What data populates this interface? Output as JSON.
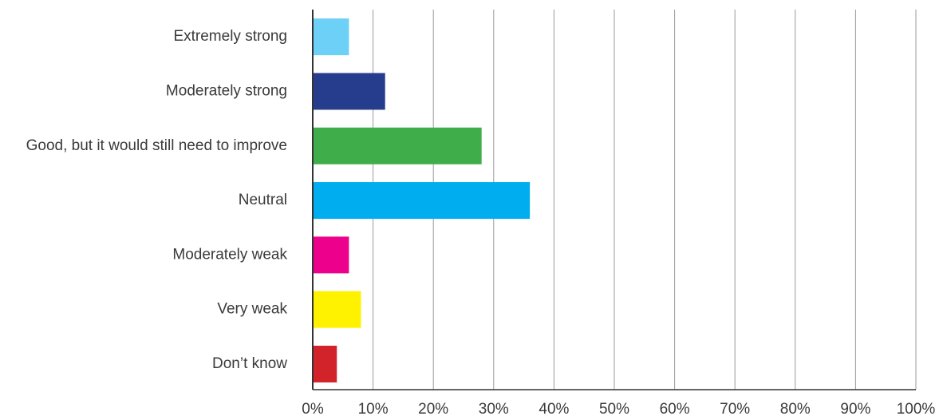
{
  "chart_data": {
    "type": "bar",
    "orientation": "horizontal",
    "title": "",
    "xlabel": "",
    "ylabel": "",
    "categories": [
      "Extremely strong",
      "Moderately strong",
      "Good, but it would still need to improve",
      "Neutral",
      "Moderately weak",
      "Very weak",
      "Don’t know"
    ],
    "values": [
      6,
      12,
      28,
      36,
      6,
      8,
      4
    ],
    "colors": [
      "#6dd0f6",
      "#253d8c",
      "#3fae4a",
      "#00aeef",
      "#ec008c",
      "#fff200",
      "#d2232a"
    ],
    "xlim": [
      0,
      100
    ],
    "x_ticks": [
      0,
      10,
      20,
      30,
      40,
      50,
      60,
      70,
      80,
      90,
      100
    ],
    "x_tick_labels": [
      "0%",
      "10%",
      "20%",
      "30%",
      "40%",
      "50%",
      "60%",
      "70%",
      "80%",
      "90%",
      "100%"
    ],
    "grid": "vertical",
    "legend": "none"
  }
}
